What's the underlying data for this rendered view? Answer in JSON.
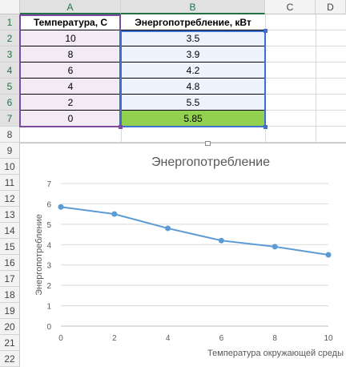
{
  "columns": [
    "A",
    "B",
    "C",
    "D"
  ],
  "rows": [
    "1",
    "2",
    "3",
    "4",
    "5",
    "6",
    "7",
    "8",
    "9",
    "10",
    "11",
    "12",
    "13",
    "14",
    "15",
    "16",
    "17",
    "18",
    "19",
    "20",
    "21",
    "22"
  ],
  "table": {
    "headers": [
      "Температура, С",
      "Энергопотребление, кВт"
    ],
    "rows": [
      [
        "10",
        "3.5"
      ],
      [
        "8",
        "3.9"
      ],
      [
        "6",
        "4.2"
      ],
      [
        "4",
        "4.8"
      ],
      [
        "2",
        "5.5"
      ],
      [
        "0",
        "5.85"
      ]
    ]
  },
  "colors": {
    "temp_fill": "#f2eaf5",
    "energy_fill": "#edf3fc",
    "highlight": "#92d050",
    "series": "#5b9bd5"
  },
  "chart_data": {
    "type": "line",
    "title": "Энергопотребление",
    "xlabel": "Температура окружающей среды",
    "ylabel": "Энергопотребление",
    "x": [
      0,
      2,
      4,
      6,
      8,
      10
    ],
    "series": [
      {
        "name": "",
        "values": [
          5.85,
          5.5,
          4.8,
          4.2,
          3.9,
          3.5
        ]
      }
    ],
    "xlim": [
      0,
      10
    ],
    "ylim": [
      0,
      7
    ],
    "xticks": [
      "0",
      "2",
      "4",
      "6",
      "8",
      "10"
    ],
    "yticks": [
      "0",
      "1",
      "2",
      "3",
      "4",
      "5",
      "6",
      "7"
    ],
    "grid": true,
    "legend": "none"
  }
}
